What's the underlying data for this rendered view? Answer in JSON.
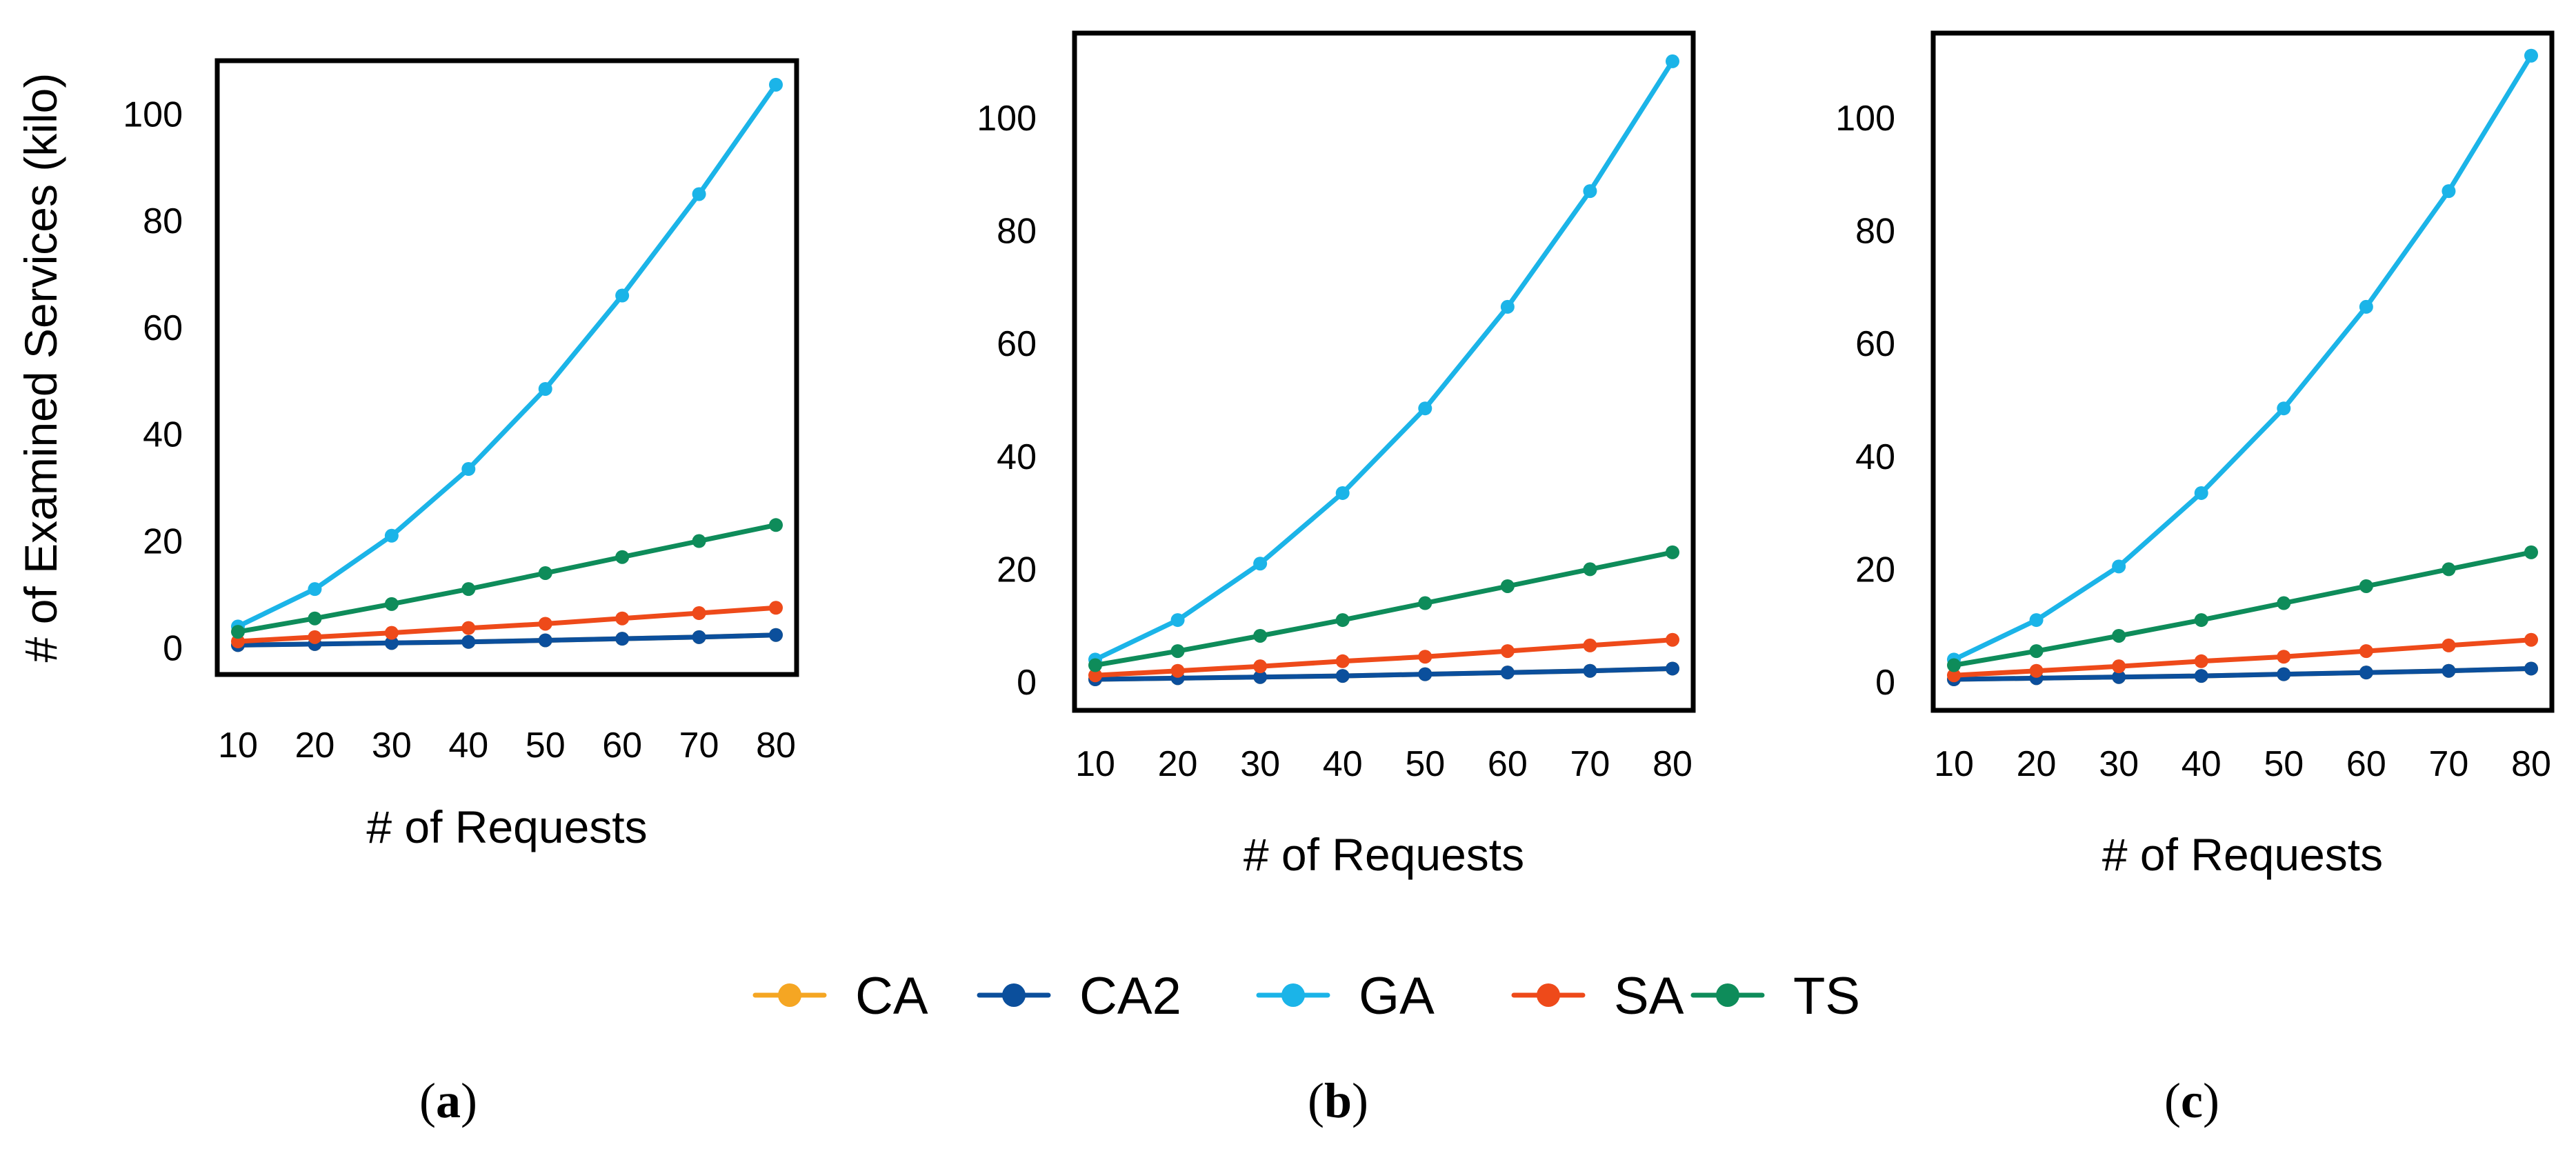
{
  "legend": [
    {
      "key": "CA",
      "label": "CA",
      "color": "#f5a623"
    },
    {
      "key": "CA2",
      "label": "CA2",
      "color": "#0b4f9c"
    },
    {
      "key": "GA",
      "label": "GA",
      "color": "#1bb4e8"
    },
    {
      "key": "SA",
      "label": "SA",
      "color": "#ee4a1a"
    },
    {
      "key": "TS",
      "label": "TS",
      "color": "#0e8c5a"
    }
  ],
  "chart_data": [
    {
      "type": "line",
      "panel_label": "a",
      "xlabel": "# of Requests",
      "ylabel": "# of Examined Services (kilo)",
      "categories": [
        10,
        20,
        30,
        40,
        50,
        60,
        70,
        80
      ],
      "ylim": [
        -5,
        110
      ],
      "yticks": [
        0,
        20,
        40,
        60,
        80,
        100
      ],
      "series": [
        {
          "name": "CA",
          "values": [
            0.5,
            0.7,
            0.9,
            1.1,
            1.4,
            1.7,
            2.0,
            2.4
          ]
        },
        {
          "name": "CA2",
          "values": [
            0.5,
            0.7,
            0.9,
            1.1,
            1.4,
            1.7,
            2.0,
            2.4
          ]
        },
        {
          "name": "GA",
          "values": [
            4.0,
            11.0,
            21.0,
            33.5,
            48.5,
            66.0,
            85.0,
            105.5
          ]
        },
        {
          "name": "SA",
          "values": [
            1.2,
            2.0,
            2.8,
            3.7,
            4.5,
            5.5,
            6.5,
            7.5
          ]
        },
        {
          "name": "TS",
          "values": [
            3.0,
            5.5,
            8.2,
            11.0,
            14.0,
            17.0,
            20.0,
            23.0
          ]
        }
      ]
    },
    {
      "type": "line",
      "panel_label": "b",
      "xlabel": "# of Requests",
      "ylabel": "",
      "categories": [
        10,
        20,
        30,
        40,
        50,
        60,
        70,
        80
      ],
      "ylim": [
        -5,
        115
      ],
      "yticks": [
        0,
        20,
        40,
        60,
        80,
        100
      ],
      "series": [
        {
          "name": "CA",
          "values": [
            0.5,
            0.7,
            0.9,
            1.1,
            1.4,
            1.7,
            2.0,
            2.4
          ]
        },
        {
          "name": "CA2",
          "values": [
            0.5,
            0.7,
            0.9,
            1.1,
            1.4,
            1.7,
            2.0,
            2.4
          ]
        },
        {
          "name": "GA",
          "values": [
            4.0,
            11.0,
            21.0,
            33.5,
            48.5,
            66.5,
            87.0,
            110.0
          ]
        },
        {
          "name": "SA",
          "values": [
            1.2,
            2.0,
            2.8,
            3.7,
            4.5,
            5.5,
            6.5,
            7.5
          ]
        },
        {
          "name": "TS",
          "values": [
            3.0,
            5.5,
            8.2,
            11.0,
            14.0,
            17.0,
            20.0,
            23.0
          ]
        }
      ]
    },
    {
      "type": "line",
      "panel_label": "c",
      "xlabel": "# of Requests",
      "ylabel": "",
      "categories": [
        10,
        20,
        30,
        40,
        50,
        60,
        70,
        80
      ],
      "ylim": [
        -5,
        115
      ],
      "yticks": [
        0,
        20,
        40,
        60,
        80,
        100
      ],
      "series": [
        {
          "name": "CA",
          "values": [
            0.5,
            0.7,
            0.9,
            1.1,
            1.4,
            1.7,
            2.0,
            2.4
          ]
        },
        {
          "name": "CA2",
          "values": [
            0.5,
            0.7,
            0.9,
            1.1,
            1.4,
            1.7,
            2.0,
            2.4
          ]
        },
        {
          "name": "GA",
          "values": [
            4.0,
            11.0,
            20.5,
            33.5,
            48.5,
            66.5,
            87.0,
            111.0
          ]
        },
        {
          "name": "SA",
          "values": [
            1.2,
            2.0,
            2.8,
            3.7,
            4.5,
            5.5,
            6.5,
            7.5
          ]
        },
        {
          "name": "TS",
          "values": [
            3.0,
            5.5,
            8.2,
            11.0,
            14.0,
            17.0,
            20.0,
            23.0
          ]
        }
      ]
    }
  ]
}
